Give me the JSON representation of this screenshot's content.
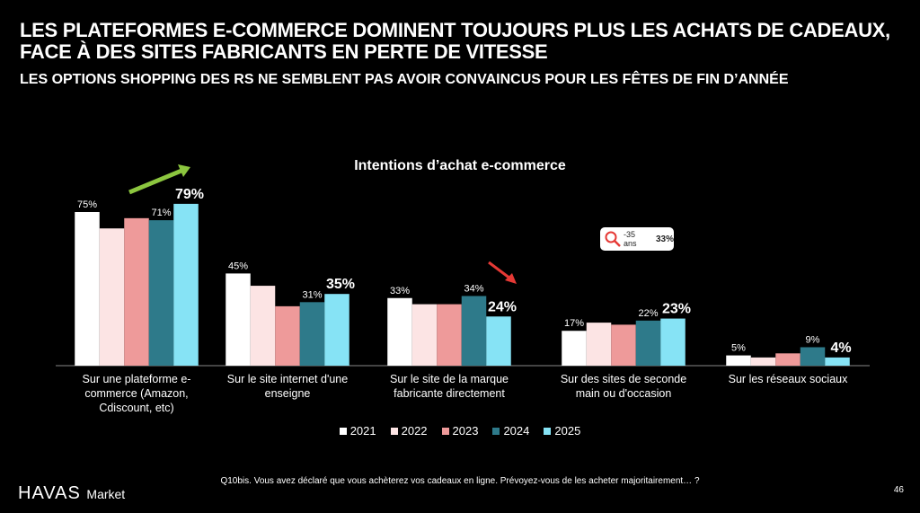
{
  "title": "LES PLATEFORMES E-COMMERCE DOMINENT TOUJOURS PLUS LES ACHATS DE CADEAUX, FACE À DES SITES FABRICANTS EN PERTE DE VITESSE",
  "subtitle": "LES OPTIONS SHOPPING DES RS NE SEMBLENT PAS AVOIR CONVAINCUS POUR LES FÊTES DE FIN D’ANNÉE",
  "footer": {
    "question": "Q10bis. Vous avez déclaré que vous achèterez vos cadeaux en ligne. Prévoyez-vous de les acheter majoritairement… ?",
    "logo": "HAVAS",
    "logo_sub": "Market",
    "page": "46"
  },
  "callout": {
    "label": "-35 ans",
    "value": "33%",
    "icon": "magnifier-icon"
  },
  "chart_data": {
    "type": "bar",
    "title": "Intentions d’achat e-commerce",
    "categories": [
      "Sur une plateforme e-commerce (Amazon, Cdiscount, etc)",
      "Sur le site internet d'une enseigne",
      "Sur le site de la marque fabricante directement",
      "Sur des sites de seconde main ou d'occasion",
      "Sur les réseaux sociaux"
    ],
    "series": [
      {
        "name": "2021",
        "color": "#ffffff",
        "values": [
          75,
          45,
          33,
          17,
          5
        ],
        "labels": [
          "75%",
          "45%",
          "33%",
          "17%",
          "5%"
        ]
      },
      {
        "name": "2022",
        "color": "#fce4e4",
        "values": [
          67,
          39,
          30,
          21,
          4
        ],
        "labels": [
          "",
          "",
          "",
          "",
          ""
        ]
      },
      {
        "name": "2023",
        "color": "#ee9a9a",
        "values": [
          72,
          29,
          30,
          20,
          6
        ],
        "labels": [
          "",
          "",
          "",
          "",
          ""
        ]
      },
      {
        "name": "2024",
        "color": "#2e7a8a",
        "values": [
          71,
          31,
          34,
          22,
          9
        ],
        "labels": [
          "71%",
          "31%",
          "34%",
          "22%",
          "9%"
        ]
      },
      {
        "name": "2025",
        "color": "#86e3f5",
        "values": [
          79,
          35,
          24,
          23,
          4
        ],
        "labels": [
          "79%",
          "35%",
          "24%",
          "23%",
          "4%"
        ]
      }
    ],
    "ylim": [
      0,
      80
    ],
    "legend": "bottom",
    "annotations": [
      {
        "type": "arrow-up",
        "color": "#8cc63f",
        "category": 0
      },
      {
        "type": "arrow-down",
        "color": "#e53935",
        "category": 2
      }
    ]
  }
}
